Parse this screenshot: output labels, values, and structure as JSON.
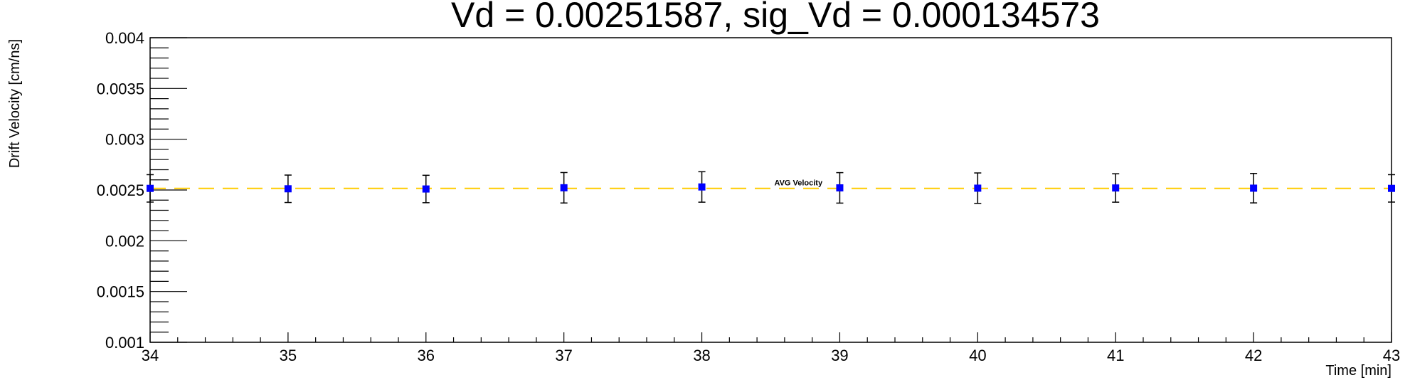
{
  "chart_data": {
    "type": "scatter",
    "title": "Vd = 0.00251587, sig_Vd = 0.000134573",
    "xlabel": "Time [min]",
    "ylabel": "Drift Velocity [cm/ns]",
    "xlim": [
      34,
      43
    ],
    "ylim": [
      0.001,
      0.004
    ],
    "x_ticks": [
      34,
      35,
      36,
      37,
      38,
      39,
      40,
      41,
      42,
      43
    ],
    "y_ticks": [
      0.001,
      0.0015,
      0.002,
      0.0025,
      0.003,
      0.0035,
      0.004
    ],
    "y_tick_labels": [
      "0.001",
      "0.0015",
      "0.002",
      "0.0025",
      "0.003",
      "0.0035",
      "0.004"
    ],
    "grid": false,
    "series": [
      {
        "x": [
          34,
          35,
          36,
          37,
          38,
          39,
          40,
          41,
          42,
          43
        ],
        "y": [
          0.002516,
          0.002512,
          0.00251,
          0.002522,
          0.00253,
          0.002521,
          0.002518,
          0.00252,
          0.002518,
          0.002516
        ],
        "y_err": [
          0.000135,
          0.000135,
          0.000135,
          0.00015,
          0.00015,
          0.00015,
          0.00015,
          0.00014,
          0.000145,
          0.000135
        ],
        "color": "#0000ff"
      }
    ],
    "reference_line": {
      "label": "AVG Velocity",
      "y": 0.00251587,
      "color": "#ffcc00",
      "style": "dashed"
    }
  }
}
